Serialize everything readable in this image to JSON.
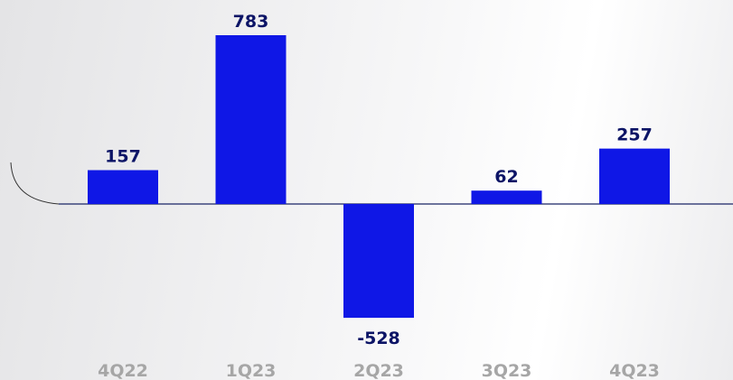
{
  "chart_data": {
    "type": "bar",
    "categories": [
      "4Q22",
      "1Q23",
      "2Q23",
      "3Q23",
      "4Q23"
    ],
    "values": [
      157,
      783,
      -528,
      62,
      257
    ],
    "color": "#0f17e6"
  }
}
